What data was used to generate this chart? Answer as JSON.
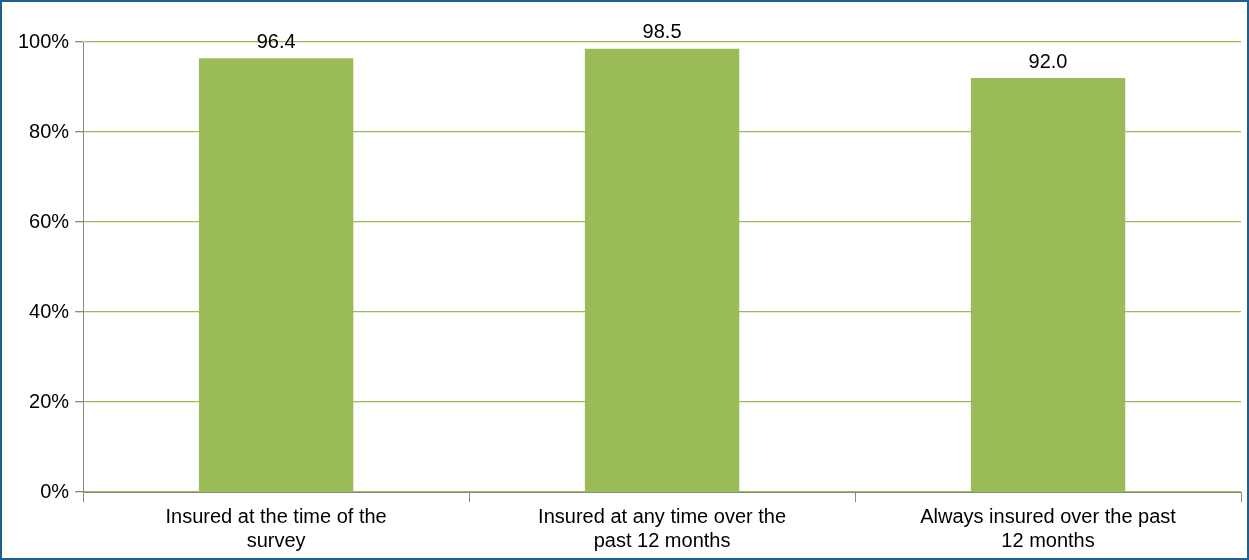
{
  "chart_data": {
    "type": "bar",
    "categories": [
      "Insured at the time of the survey",
      "Insured at any time over the past 12 months",
      "Always insured over the past 12 months"
    ],
    "values": [
      96.4,
      98.5,
      92.0
    ],
    "value_labels": [
      "96.4",
      "98.5",
      "92.0"
    ],
    "color": "#9bbb59",
    "ylim": [
      0,
      100
    ],
    "yticks": [
      {
        "value": 0,
        "label": "0%"
      },
      {
        "value": 20,
        "label": "20%"
      },
      {
        "value": 40,
        "label": "40%"
      },
      {
        "value": 60,
        "label": "60%"
      },
      {
        "value": 80,
        "label": "80%"
      },
      {
        "value": 100,
        "label": "100%"
      }
    ],
    "grid": "y",
    "legend": false
  }
}
